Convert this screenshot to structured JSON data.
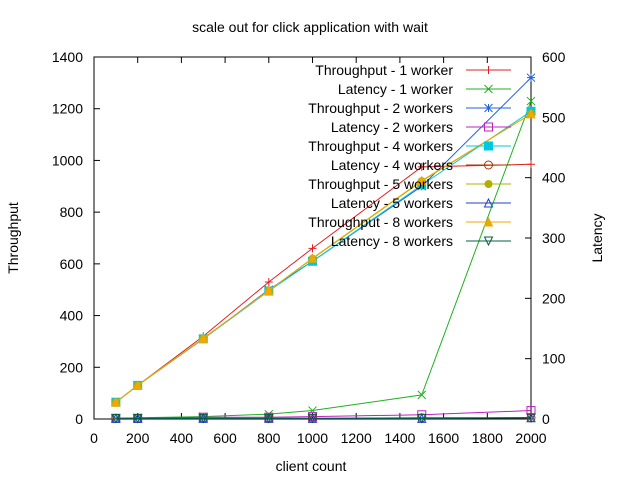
{
  "chart_data": {
    "type": "line",
    "title": "scale out for click application with wait",
    "xlabel": "client count",
    "ylabel": "Throughput",
    "y2label": "Latency",
    "xlim": [
      0,
      2000
    ],
    "ylim": [
      0,
      1400
    ],
    "y2lim": [
      0,
      600
    ],
    "xticks": [
      0,
      200,
      400,
      600,
      800,
      1000,
      1200,
      1400,
      1600,
      1800,
      2000
    ],
    "yticks": [
      0,
      200,
      400,
      600,
      800,
      1000,
      1200,
      1400
    ],
    "y2ticks": [
      0,
      100,
      200,
      300,
      400,
      500,
      600
    ],
    "grid": false,
    "legend_position": "top-right",
    "series": [
      {
        "name": "Throughput - 1 worker",
        "axis": "y",
        "color": "#e02020",
        "marker": "plus",
        "x": [
          100,
          200,
          500,
          800,
          1000,
          1500,
          2000
        ],
        "values": [
          65,
          130,
          320,
          530,
          660,
          975,
          985
        ]
      },
      {
        "name": "Latency - 1 worker",
        "axis": "y2",
        "color": "#20b020",
        "marker": "cross",
        "x": [
          100,
          200,
          500,
          800,
          1000,
          1500,
          2000
        ],
        "values": [
          1,
          2,
          4,
          8,
          14,
          40,
          527
        ]
      },
      {
        "name": "Throughput - 2 workers",
        "axis": "y",
        "color": "#2060e0",
        "marker": "star",
        "x": [
          100,
          200,
          500,
          800,
          1000,
          1500,
          2000
        ],
        "values": [
          65,
          130,
          310,
          500,
          610,
          900,
          1320
        ]
      },
      {
        "name": "Latency - 2 workers",
        "axis": "y2",
        "color": "#c020c0",
        "marker": "square",
        "x": [
          100,
          200,
          500,
          800,
          1000,
          1500,
          2000
        ],
        "values": [
          1,
          1,
          3,
          3,
          4,
          7,
          14
        ]
      },
      {
        "name": "Throughput - 4 workers",
        "axis": "y",
        "color": "#00c8e0",
        "marker": "filled-square",
        "x": [
          100,
          200,
          500,
          800,
          1000,
          1500,
          2000
        ],
        "values": [
          65,
          130,
          310,
          495,
          610,
          905,
          1190
        ]
      },
      {
        "name": "Latency - 4 workers",
        "axis": "y2",
        "color": "#b03000",
        "marker": "circle",
        "x": [
          100,
          200,
          500,
          800,
          1000,
          1500,
          2000
        ],
        "values": [
          1,
          1,
          1,
          1,
          1,
          2,
          2
        ]
      },
      {
        "name": "Throughput - 5 workers",
        "axis": "y",
        "color": "#b0b000",
        "marker": "filled-circle",
        "x": [
          100,
          200,
          500,
          800,
          1000,
          1500,
          2000
        ],
        "values": [
          65,
          130,
          312,
          497,
          620,
          920,
          1180
        ]
      },
      {
        "name": "Latency - 5 workers",
        "axis": "y2",
        "color": "#2040c0",
        "marker": "triangle",
        "x": [
          100,
          200,
          500,
          800,
          1000,
          1500,
          2000
        ],
        "values": [
          1,
          1,
          1,
          1,
          1,
          1,
          2
        ]
      },
      {
        "name": "Throughput - 8 workers",
        "axis": "y",
        "color": "#f0a800",
        "marker": "filled-triangle",
        "x": [
          100,
          200,
          500,
          800,
          1000,
          1500,
          2000
        ],
        "values": [
          65,
          130,
          312,
          497,
          622,
          922,
          1180
        ]
      },
      {
        "name": "Latency - 8 workers",
        "axis": "y2",
        "color": "#006040",
        "marker": "inverted-triangle",
        "x": [
          100,
          200,
          500,
          800,
          1000,
          1500,
          2000
        ],
        "values": [
          1,
          1,
          1,
          1,
          1,
          1,
          2
        ]
      }
    ]
  }
}
